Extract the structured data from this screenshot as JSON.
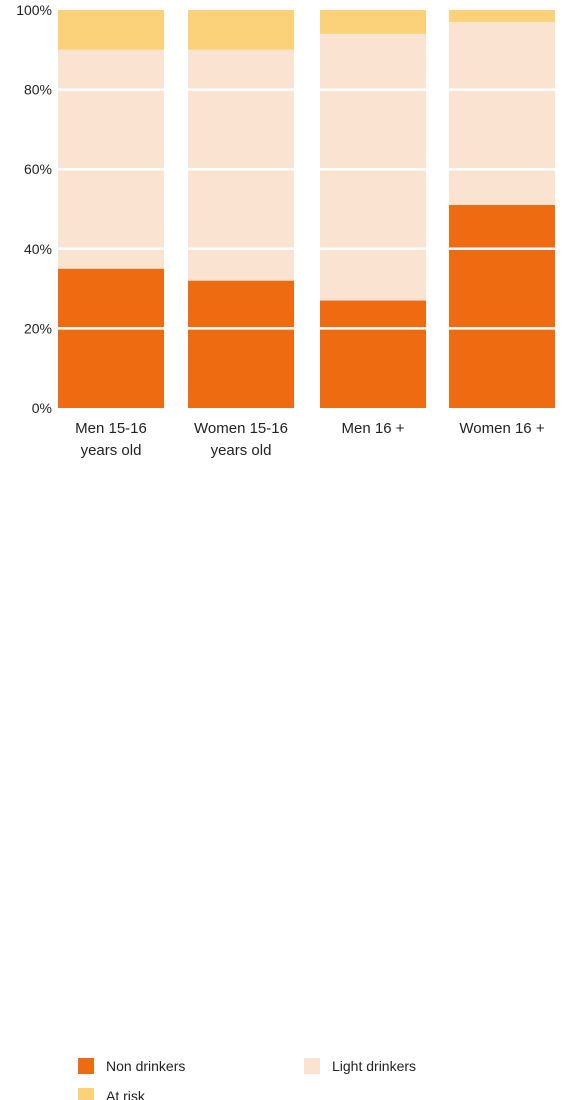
{
  "chart_data": {
    "type": "bar",
    "stacked": true,
    "categories": [
      [
        "Men 15-16",
        "years old"
      ],
      [
        "Women 15-16",
        "years old"
      ],
      [
        "Men 16 +"
      ],
      [
        "Women 16 +"
      ]
    ],
    "series": [
      {
        "name": "Non drinkers",
        "color": "#EE6B12",
        "values": [
          35,
          32,
          27,
          51
        ]
      },
      {
        "name": "Light drinkers",
        "color": "#FBE3D1",
        "values": [
          55,
          58,
          67,
          46
        ]
      },
      {
        "name": "At risk",
        "color": "#FBD27A",
        "values": [
          10,
          10,
          6,
          3
        ]
      }
    ],
    "ylim": [
      0,
      100
    ],
    "yticks": [
      "0%",
      "20%",
      "40%",
      "60%",
      "80%",
      "100%"
    ],
    "grid": true,
    "legend": {
      "position": "bottom",
      "items": [
        {
          "label": "Non drinkers",
          "color": "#EE6B12"
        },
        {
          "label": "Light drinkers",
          "color": "#FBE3D1"
        },
        {
          "label": "At risk",
          "color": "#FBD27A"
        }
      ]
    }
  }
}
